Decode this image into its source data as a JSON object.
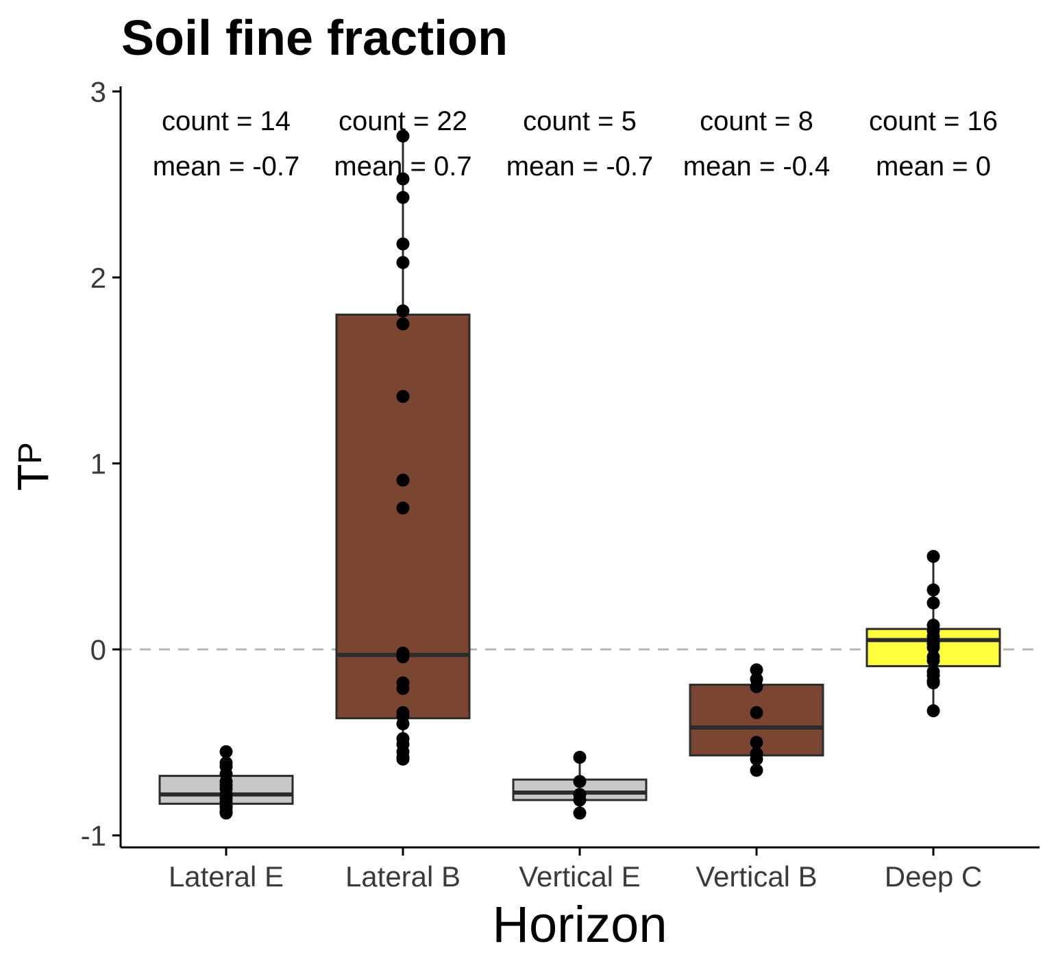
{
  "chart_data": {
    "type": "box",
    "title": "Soil fine fraction",
    "xlabel": "Horizon",
    "ylabel_main": "T",
    "ylabel_sub": "P",
    "ylim": [
      -1.1,
      3.0
    ],
    "yticks": [
      -1,
      0,
      1,
      2,
      3
    ],
    "ytick_labels": [
      "-1",
      "0",
      "1",
      "2",
      "3"
    ],
    "reference_line": 0,
    "colors": {
      "grey": "#c8c8c8",
      "brown": "#7b4631",
      "yellow": "#ffff3d",
      "outline": "#2b2b2b",
      "point": "#000000",
      "ref_line": "#b5b5b5"
    },
    "categories": [
      "Lateral E",
      "Lateral B",
      "Vertical E",
      "Vertical B",
      "Deep C"
    ],
    "boxes": [
      {
        "category": "Lateral E",
        "fill": "#c8c8c8",
        "q1": -0.83,
        "median": -0.78,
        "q3": -0.68,
        "whisker_low": -0.88,
        "whisker_high": -0.55,
        "count_label": "count = 14",
        "mean_label": "mean = -0.7",
        "points": [
          -0.55,
          -0.61,
          -0.63,
          -0.67,
          -0.71,
          -0.73,
          -0.75,
          -0.78,
          -0.8,
          -0.82,
          -0.84,
          -0.85,
          -0.87,
          -0.88
        ]
      },
      {
        "category": "Lateral B",
        "fill": "#7b4631",
        "q1": -0.37,
        "median": -0.03,
        "q3": 1.8,
        "whisker_low": -0.59,
        "whisker_high": 2.76,
        "count_label": "count = 22",
        "mean_label": "mean = 0.7",
        "points": [
          2.76,
          2.53,
          2.43,
          2.18,
          2.08,
          1.82,
          1.75,
          1.36,
          0.91,
          0.76,
          -0.02,
          -0.04,
          -0.18,
          -0.21,
          -0.34,
          -0.36,
          -0.4,
          -0.48,
          -0.51,
          -0.55,
          -0.59,
          -0.58
        ]
      },
      {
        "category": "Vertical E",
        "fill": "#c8c8c8",
        "q1": -0.81,
        "median": -0.77,
        "q3": -0.7,
        "whisker_low": -0.88,
        "whisker_high": -0.58,
        "count_label": "count = 5",
        "mean_label": "mean = -0.7",
        "points": [
          -0.58,
          -0.71,
          -0.78,
          -0.81,
          -0.88
        ]
      },
      {
        "category": "Vertical B",
        "fill": "#7b4631",
        "q1": -0.57,
        "median": -0.42,
        "q3": -0.19,
        "whisker_low": -0.65,
        "whisker_high": -0.11,
        "count_label": "count = 8",
        "mean_label": "mean = -0.4",
        "points": [
          -0.11,
          -0.16,
          -0.2,
          -0.34,
          -0.5,
          -0.56,
          -0.59,
          -0.65
        ]
      },
      {
        "category": "Deep C",
        "fill": "#ffff3d",
        "q1": -0.09,
        "median": 0.05,
        "q3": 0.11,
        "whisker_low": -0.33,
        "whisker_high": 0.5,
        "count_label": "count = 16",
        "mean_label": "mean = 0",
        "points": [
          0.5,
          0.32,
          0.25,
          0.13,
          0.1,
          0.07,
          0.04,
          0.01,
          -0.04,
          -0.06,
          -0.12,
          -0.14,
          -0.17,
          -0.18,
          -0.33,
          0.03
        ]
      }
    ]
  }
}
